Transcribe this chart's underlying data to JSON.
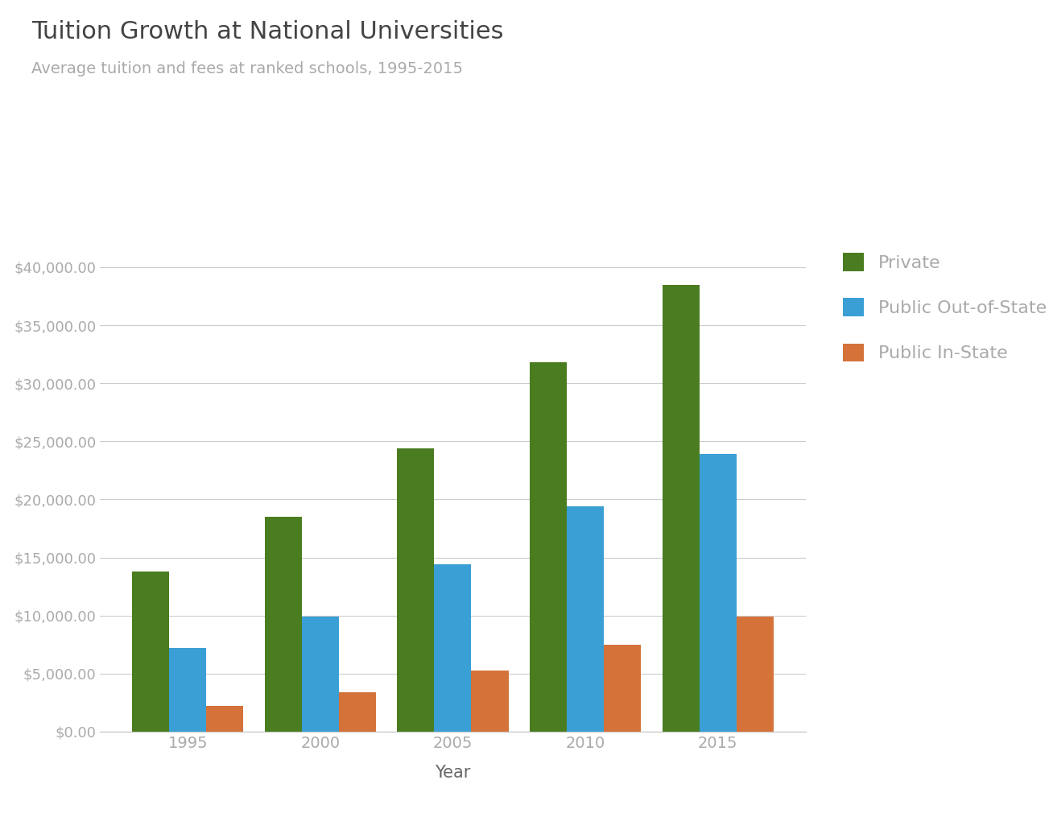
{
  "title": "Tuition Growth at National Universities",
  "subtitle": "Average tuition and fees at ranked schools, 1995-2015",
  "xlabel": "Year",
  "years": [
    1995,
    2000,
    2005,
    2010,
    2015
  ],
  "private": [
    13800,
    18500,
    24400,
    31800,
    38500
  ],
  "out_of_state": [
    7200,
    9900,
    14400,
    19400,
    23900
  ],
  "in_state": [
    2200,
    3400,
    5300,
    7500,
    9900
  ],
  "color_private": "#4a7c20",
  "color_out": "#3a9fd4",
  "color_in": "#d4723a",
  "label_private": "Private",
  "label_out": "Public Out-of-State",
  "label_in": "Public In-State",
  "ylim": [
    0,
    42000
  ],
  "yticks": [
    0,
    5000,
    10000,
    15000,
    20000,
    25000,
    30000,
    35000,
    40000
  ],
  "background_color": "#ffffff",
  "grid_color": "#cccccc",
  "title_color": "#444444",
  "subtitle_color": "#aaaaaa",
  "tick_color": "#aaaaaa",
  "axis_label_color": "#666666",
  "bottom_spine_color": "#cccccc"
}
